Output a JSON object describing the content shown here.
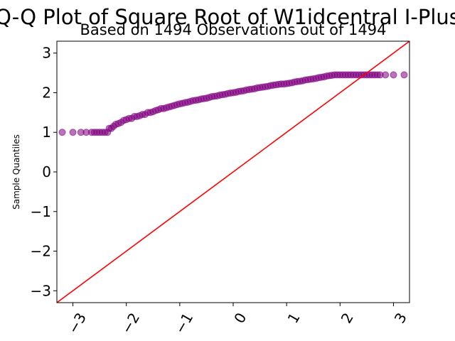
{
  "chart_data": {
    "type": "scatter",
    "title": "Q-Q Plot of Square Root of W1idcentral I-Plus",
    "subtitle": "Based on 1494 Observations out of 1494",
    "xlabel": "",
    "ylabel": "Sample Quantiles",
    "xlim": [
      -3.3,
      3.3
    ],
    "ylim": [
      -3.3,
      3.3
    ],
    "xticks": [
      -3,
      -2,
      -1,
      0,
      1,
      2,
      3
    ],
    "xtick_labels": [
      "−3",
      "−2",
      "−1",
      "0",
      "1",
      "2",
      "3"
    ],
    "yticks": [
      -3,
      -2,
      -1,
      0,
      1,
      2,
      3
    ],
    "ytick_labels": [
      "−3",
      "−2",
      "−1",
      "0",
      "1",
      "2",
      "3"
    ],
    "grid": false,
    "reference_line": {
      "slope": 1,
      "intercept": 0,
      "color": "#ff0000"
    },
    "points_color": "#800080",
    "series": [
      {
        "x": [
          -3.2,
          -3.0,
          -2.85,
          -2.75,
          -2.65,
          -2.6,
          -2.55,
          -2.5,
          -2.45,
          -2.4,
          -2.35,
          -2.32,
          -2.28,
          -2.24,
          -2.2,
          -2.15,
          -2.1,
          -2.05,
          -2.0,
          -1.95,
          -1.9,
          -1.85,
          -1.8,
          -1.75,
          -1.7,
          -1.65,
          -1.6,
          -1.55,
          -1.5,
          -1.45,
          -1.4,
          -1.35,
          -1.3,
          -1.25,
          -1.2,
          -1.15,
          -1.1,
          -1.05,
          -1.0,
          -0.95,
          -0.9,
          -0.85,
          -0.8,
          -0.75,
          -0.7,
          -0.65,
          -0.6,
          -0.55,
          -0.5,
          -0.45,
          -0.4,
          -0.35,
          -0.3,
          -0.25,
          -0.2,
          -0.15,
          -0.1,
          -0.05,
          0.0,
          0.05,
          0.1,
          0.15,
          0.2,
          0.25,
          0.3,
          0.35,
          0.4,
          0.45,
          0.5,
          0.55,
          0.6,
          0.65,
          0.7,
          0.75,
          0.8,
          0.85,
          0.9,
          0.95,
          1.0,
          1.05,
          1.1,
          1.15,
          1.2,
          1.25,
          1.3,
          1.35,
          1.4,
          1.45,
          1.5,
          1.55,
          1.6,
          1.65,
          1.7,
          1.75,
          1.8,
          1.85,
          1.9,
          1.95,
          2.0,
          2.05,
          2.1,
          2.15,
          2.2,
          2.25,
          2.3,
          2.35,
          2.4,
          2.45,
          2.5,
          2.55,
          2.6,
          2.65,
          2.7,
          2.75,
          2.85,
          3.0,
          3.2
        ],
        "y": [
          1.0,
          1.0,
          1.0,
          1.0,
          1.0,
          1.0,
          1.0,
          1.0,
          1.0,
          1.0,
          1.0,
          1.1,
          1.1,
          1.15,
          1.2,
          1.22,
          1.25,
          1.3,
          1.32,
          1.35,
          1.35,
          1.4,
          1.4,
          1.42,
          1.45,
          1.45,
          1.5,
          1.5,
          1.52,
          1.55,
          1.57,
          1.6,
          1.6,
          1.62,
          1.64,
          1.66,
          1.68,
          1.7,
          1.72,
          1.73,
          1.75,
          1.76,
          1.78,
          1.8,
          1.81,
          1.82,
          1.84,
          1.85,
          1.86,
          1.88,
          1.9,
          1.91,
          1.92,
          1.94,
          1.95,
          1.96,
          1.98,
          1.99,
          2.0,
          2.01,
          2.03,
          2.04,
          2.05,
          2.07,
          2.08,
          2.09,
          2.1,
          2.12,
          2.13,
          2.14,
          2.15,
          2.16,
          2.18,
          2.19,
          2.2,
          2.21,
          2.22,
          2.22,
          2.23,
          2.24,
          2.25,
          2.27,
          2.28,
          2.29,
          2.3,
          2.32,
          2.33,
          2.34,
          2.35,
          2.36,
          2.38,
          2.39,
          2.4,
          2.42,
          2.43,
          2.44,
          2.45,
          2.45,
          2.45,
          2.45,
          2.45,
          2.45,
          2.45,
          2.45,
          2.45,
          2.45,
          2.45,
          2.45,
          2.45,
          2.45,
          2.45,
          2.45,
          2.45,
          2.45,
          2.45,
          2.45,
          2.45
        ]
      }
    ]
  }
}
